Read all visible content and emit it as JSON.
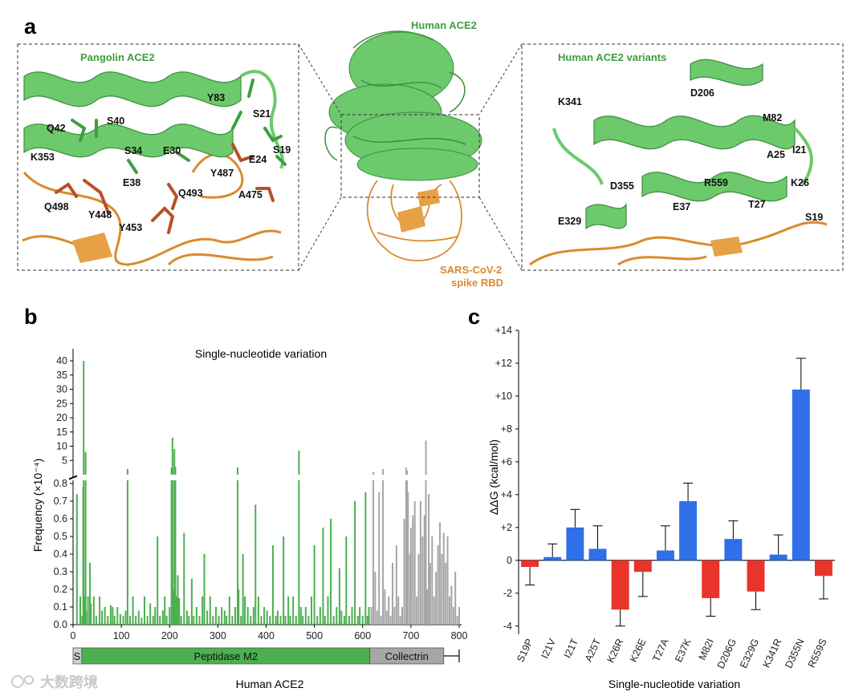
{
  "panels": {
    "a": "a",
    "b": "b",
    "c": "c"
  },
  "panel_a": {
    "left_title": "Pangolin ACE2",
    "center_title": "Human ACE2",
    "right_title": "Human ACE2 variants",
    "rbd_label_line1": "SARS-CoV-2",
    "rbd_label_line2": "spike RBD",
    "left_residues": [
      "S21",
      "Y83",
      "Q42",
      "S40",
      "S34",
      "E30",
      "K353",
      "S19",
      "E24",
      "Y487",
      "E38",
      "Q493",
      "A475",
      "Q498",
      "Y448",
      "Y453"
    ],
    "right_residues": [
      "K341",
      "D206",
      "M82",
      "I21",
      "A25",
      "K26",
      "D355",
      "R559",
      "E37",
      "T27",
      "S19",
      "E329"
    ]
  },
  "watermark": "大数跨境",
  "chart_data": [
    {
      "id": "b",
      "type": "bar",
      "title": "Single-nucleotide variation",
      "xlabel": "Human ACE2",
      "ylabel": "Frequency (×10⁻⁴)",
      "xlim": [
        0,
        805
      ],
      "x_ticks": [
        "0",
        "100",
        "200",
        "300",
        "400",
        "500",
        "600",
        "700",
        "800"
      ],
      "y_ticks_lower": [
        "0.0",
        "0.1",
        "0.2",
        "0.3",
        "0.4",
        "0.5",
        "0.6",
        "0.7",
        "0.8"
      ],
      "y_ticks_upper": [
        "5",
        "10",
        "15",
        "20",
        "25",
        "30",
        "35",
        "40"
      ],
      "domains": [
        {
          "label": "S",
          "start": 1,
          "end": 18
        },
        {
          "label": "Peptidase M2",
          "start": 19,
          "end": 615
        },
        {
          "label": "Collectrin",
          "start": 616,
          "end": 768
        }
      ],
      "series_colors": {
        "peptidase": "#4caf50",
        "collectrin": "#a6a6a6"
      },
      "bars": [
        {
          "x": 8,
          "y": 0.74
        },
        {
          "x": 15,
          "y": 0.16
        },
        {
          "x": 19,
          "y": 0.05
        },
        {
          "x": 21,
          "y": 0.78
        },
        {
          "x": 22,
          "y": 40
        },
        {
          "x": 24,
          "y": 0.16
        },
        {
          "x": 26,
          "y": 8
        },
        {
          "x": 27,
          "y": 0.08
        },
        {
          "x": 31,
          "y": 0.16
        },
        {
          "x": 35,
          "y": 0.35
        },
        {
          "x": 37,
          "y": 0.12
        },
        {
          "x": 43,
          "y": 0.16
        },
        {
          "x": 48,
          "y": 0.05
        },
        {
          "x": 55,
          "y": 0.16
        },
        {
          "x": 60,
          "y": 0.08
        },
        {
          "x": 66,
          "y": 0.1
        },
        {
          "x": 72,
          "y": 0.05
        },
        {
          "x": 78,
          "y": 0.11
        },
        {
          "x": 82,
          "y": 0.1
        },
        {
          "x": 86,
          "y": 0.05
        },
        {
          "x": 92,
          "y": 0.1
        },
        {
          "x": 98,
          "y": 0.06
        },
        {
          "x": 104,
          "y": 0.05
        },
        {
          "x": 109,
          "y": 0.08
        },
        {
          "x": 113,
          "y": 2
        },
        {
          "x": 118,
          "y": 0.05
        },
        {
          "x": 124,
          "y": 0.16
        },
        {
          "x": 130,
          "y": 0.05
        },
        {
          "x": 136,
          "y": 0.08
        },
        {
          "x": 142,
          "y": 0.04
        },
        {
          "x": 148,
          "y": 0.16
        },
        {
          "x": 154,
          "y": 0.05
        },
        {
          "x": 160,
          "y": 0.12
        },
        {
          "x": 166,
          "y": 0.05
        },
        {
          "x": 170,
          "y": 0.1
        },
        {
          "x": 175,
          "y": 0.5
        },
        {
          "x": 180,
          "y": 0.05
        },
        {
          "x": 186,
          "y": 0.08
        },
        {
          "x": 190,
          "y": 0.16
        },
        {
          "x": 194,
          "y": 0.05
        },
        {
          "x": 200,
          "y": 0.1
        },
        {
          "x": 204,
          "y": 2.5
        },
        {
          "x": 206,
          "y": 13
        },
        {
          "x": 208,
          "y": 0.2
        },
        {
          "x": 210,
          "y": 9
        },
        {
          "x": 212,
          "y": 2.8
        },
        {
          "x": 214,
          "y": 0.16
        },
        {
          "x": 217,
          "y": 0.28
        },
        {
          "x": 220,
          "y": 0.15
        },
        {
          "x": 224,
          "y": 0.05
        },
        {
          "x": 230,
          "y": 0.52
        },
        {
          "x": 236,
          "y": 0.08
        },
        {
          "x": 240,
          "y": 0.05
        },
        {
          "x": 246,
          "y": 0.26
        },
        {
          "x": 250,
          "y": 0.05
        },
        {
          "x": 256,
          "y": 0.1
        },
        {
          "x": 262,
          "y": 0.05
        },
        {
          "x": 268,
          "y": 0.16
        },
        {
          "x": 272,
          "y": 0.4
        },
        {
          "x": 278,
          "y": 0.08
        },
        {
          "x": 284,
          "y": 0.16
        },
        {
          "x": 290,
          "y": 0.05
        },
        {
          "x": 296,
          "y": 0.1
        },
        {
          "x": 302,
          "y": 0.05
        },
        {
          "x": 308,
          "y": 0.1
        },
        {
          "x": 314,
          "y": 0.08
        },
        {
          "x": 318,
          "y": 0.05
        },
        {
          "x": 324,
          "y": 0.16
        },
        {
          "x": 330,
          "y": 0.05
        },
        {
          "x": 336,
          "y": 0.1
        },
        {
          "x": 341,
          "y": 2.5
        },
        {
          "x": 343,
          "y": 0.2
        },
        {
          "x": 348,
          "y": 0.05
        },
        {
          "x": 352,
          "y": 0.4
        },
        {
          "x": 356,
          "y": 0.16
        },
        {
          "x": 362,
          "y": 0.1
        },
        {
          "x": 368,
          "y": 0.05
        },
        {
          "x": 374,
          "y": 0.1
        },
        {
          "x": 378,
          "y": 0.68
        },
        {
          "x": 384,
          "y": 0.16
        },
        {
          "x": 390,
          "y": 0.05
        },
        {
          "x": 396,
          "y": 0.1
        },
        {
          "x": 402,
          "y": 0.08
        },
        {
          "x": 408,
          "y": 0.05
        },
        {
          "x": 414,
          "y": 0.45
        },
        {
          "x": 420,
          "y": 0.05
        },
        {
          "x": 424,
          "y": 0.08
        },
        {
          "x": 430,
          "y": 0.05
        },
        {
          "x": 436,
          "y": 0.5
        },
        {
          "x": 440,
          "y": 0.05
        },
        {
          "x": 446,
          "y": 0.16
        },
        {
          "x": 450,
          "y": 0.05
        },
        {
          "x": 456,
          "y": 0.16
        },
        {
          "x": 462,
          "y": 0.05
        },
        {
          "x": 468,
          "y": 8.5
        },
        {
          "x": 472,
          "y": 0.1
        },
        {
          "x": 476,
          "y": 0.05
        },
        {
          "x": 482,
          "y": 0.1
        },
        {
          "x": 488,
          "y": 0.05
        },
        {
          "x": 494,
          "y": 0.16
        },
        {
          "x": 500,
          "y": 0.45
        },
        {
          "x": 506,
          "y": 0.05
        },
        {
          "x": 512,
          "y": 0.1
        },
        {
          "x": 518,
          "y": 0.55
        },
        {
          "x": 522,
          "y": 0.05
        },
        {
          "x": 528,
          "y": 0.16
        },
        {
          "x": 534,
          "y": 0.6
        },
        {
          "x": 540,
          "y": 0.05
        },
        {
          "x": 546,
          "y": 0.1
        },
        {
          "x": 552,
          "y": 0.32
        },
        {
          "x": 556,
          "y": 0.08
        },
        {
          "x": 562,
          "y": 0.05
        },
        {
          "x": 566,
          "y": 0.5
        },
        {
          "x": 572,
          "y": 0.05
        },
        {
          "x": 578,
          "y": 0.1
        },
        {
          "x": 584,
          "y": 0.7
        },
        {
          "x": 590,
          "y": 0.05
        },
        {
          "x": 594,
          "y": 0.1
        },
        {
          "x": 600,
          "y": 0.05
        },
        {
          "x": 606,
          "y": 0.75
        },
        {
          "x": 610,
          "y": 0.05
        },
        {
          "x": 613,
          "y": 0.1
        },
        {
          "x": 618,
          "y": 0.1
        },
        {
          "x": 622,
          "y": 1
        },
        {
          "x": 626,
          "y": 0.3
        },
        {
          "x": 630,
          "y": 0.08
        },
        {
          "x": 634,
          "y": 0.75
        },
        {
          "x": 638,
          "y": 0.05
        },
        {
          "x": 642,
          "y": 2
        },
        {
          "x": 646,
          "y": 0.2
        },
        {
          "x": 650,
          "y": 0.08
        },
        {
          "x": 654,
          "y": 0.16
        },
        {
          "x": 658,
          "y": 0.05
        },
        {
          "x": 662,
          "y": 0.35
        },
        {
          "x": 666,
          "y": 0.1
        },
        {
          "x": 670,
          "y": 0.45
        },
        {
          "x": 674,
          "y": 0.16
        },
        {
          "x": 678,
          "y": 0.05
        },
        {
          "x": 682,
          "y": 0.1
        },
        {
          "x": 686,
          "y": 0.6
        },
        {
          "x": 690,
          "y": 2.5
        },
        {
          "x": 692,
          "y": 1.5
        },
        {
          "x": 694,
          "y": 0.75
        },
        {
          "x": 698,
          "y": 0.4
        },
        {
          "x": 700,
          "y": 0.55
        },
        {
          "x": 704,
          "y": 0.62
        },
        {
          "x": 708,
          "y": 0.7
        },
        {
          "x": 712,
          "y": 0.16
        },
        {
          "x": 716,
          "y": 0.4
        },
        {
          "x": 720,
          "y": 0.7
        },
        {
          "x": 724,
          "y": 0.5
        },
        {
          "x": 728,
          "y": 0.62
        },
        {
          "x": 731,
          "y": 12
        },
        {
          "x": 734,
          "y": 0.2
        },
        {
          "x": 737,
          "y": 0.74
        },
        {
          "x": 740,
          "y": 0.35
        },
        {
          "x": 744,
          "y": 0.5
        },
        {
          "x": 748,
          "y": 0.16
        },
        {
          "x": 752,
          "y": 0.3
        },
        {
          "x": 756,
          "y": 0.45
        },
        {
          "x": 760,
          "y": 0.58
        },
        {
          "x": 764,
          "y": 0.4
        },
        {
          "x": 768,
          "y": 0.52
        },
        {
          "x": 772,
          "y": 0.35
        },
        {
          "x": 776,
          "y": 0.5
        },
        {
          "x": 780,
          "y": 0.16
        },
        {
          "x": 784,
          "y": 0.22
        },
        {
          "x": 788,
          "y": 0.1
        },
        {
          "x": 792,
          "y": 0.3
        },
        {
          "x": 796,
          "y": 0.05
        },
        {
          "x": 800,
          "y": 0.1
        }
      ]
    },
    {
      "id": "c",
      "type": "bar",
      "xlabel": "Single-nucleotide variation",
      "ylabel": "ΔΔG (kcal/mol)",
      "ylim": [
        -4.5,
        14
      ],
      "y_ticks": [
        "+14",
        "+12",
        "+10",
        "+8",
        "+6",
        "+4",
        "+2",
        "0",
        "-2",
        "-4"
      ],
      "y_tick_values": [
        14,
        12,
        10,
        8,
        6,
        4,
        2,
        0,
        -2,
        -4
      ],
      "categories": [
        "S19P",
        "I21V",
        "I21T",
        "A25T",
        "K26R",
        "K26E",
        "T27A",
        "E37K",
        "M82I",
        "D206G",
        "E329G",
        "K341R",
        "D355N",
        "R559S"
      ],
      "values": [
        -0.4,
        0.2,
        2.0,
        0.7,
        -3.0,
        -0.7,
        0.6,
        3.6,
        -2.3,
        1.3,
        -1.9,
        0.35,
        10.4,
        -0.95
      ],
      "errors": [
        1.1,
        0.8,
        1.1,
        1.4,
        1.0,
        1.5,
        1.5,
        1.1,
        1.1,
        1.1,
        1.1,
        1.2,
        1.9,
        1.4
      ],
      "colors": {
        "positive": "#2f6fe8",
        "negative": "#e8342a"
      }
    }
  ]
}
